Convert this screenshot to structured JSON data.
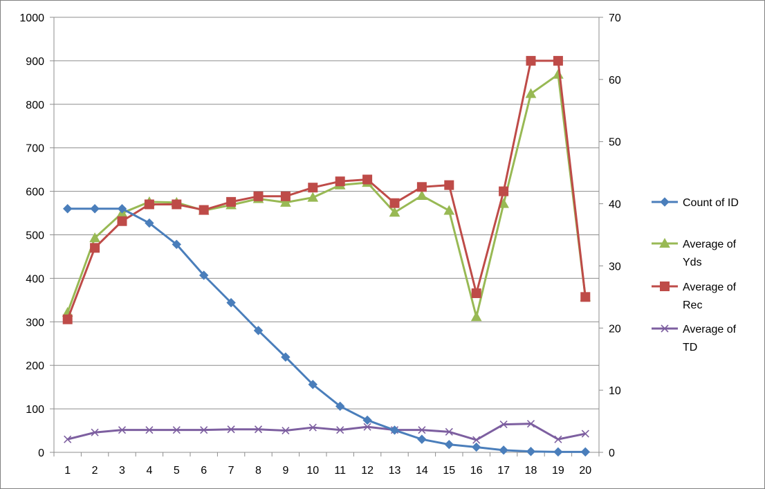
{
  "chart_data": {
    "type": "line",
    "title": "",
    "xlabel": "",
    "ylabel": "",
    "categories": [
      "1",
      "2",
      "3",
      "4",
      "5",
      "6",
      "7",
      "8",
      "9",
      "10",
      "11",
      "12",
      "13",
      "14",
      "15",
      "16",
      "17",
      "18",
      "19",
      "20"
    ],
    "y_left": {
      "min": 0,
      "max": 1000,
      "ticks": [
        "0",
        "100",
        "200",
        "300",
        "400",
        "500",
        "600",
        "700",
        "800",
        "900",
        "1000"
      ]
    },
    "y_right": {
      "min": 0,
      "max": 70,
      "ticks": [
        "0",
        "10",
        "20",
        "30",
        "40",
        "50",
        "60",
        "70"
      ]
    },
    "grid": true,
    "legend": "right",
    "series": [
      {
        "name": "Count of ID",
        "axis": "left",
        "color": "#4a7ebb",
        "marker": "diamond",
        "values": [
          560,
          560,
          560,
          527,
          478,
          407,
          344,
          280,
          219,
          156,
          106,
          74,
          51,
          30,
          18,
          12,
          5,
          2,
          1,
          1
        ]
      },
      {
        "name": "Average of Yds",
        "axis": "right",
        "color": "#98b954",
        "marker": "triangle",
        "values": [
          22.5,
          34.5,
          38.5,
          40.3,
          40.2,
          38.9,
          39.8,
          40.8,
          40.2,
          41.0,
          43.0,
          43.4,
          38.6,
          41.3,
          38.9,
          21.8,
          40.0,
          57.7,
          60.8,
          25.0
        ]
      },
      {
        "name": "Average of Rec",
        "axis": "right",
        "color": "#be4b48",
        "marker": "square",
        "values": [
          21.4,
          32.9,
          37.2,
          39.9,
          39.9,
          39.0,
          40.3,
          41.2,
          41.2,
          42.6,
          43.6,
          43.9,
          40.1,
          42.7,
          43.0,
          25.6,
          42.0,
          63.0,
          63.0,
          25.0
        ]
      },
      {
        "name": "Average of TD",
        "axis": "right",
        "color": "#7d5fa0",
        "marker": "x",
        "values": [
          2.1,
          3.2,
          3.6,
          3.6,
          3.6,
          3.6,
          3.7,
          3.7,
          3.5,
          4.0,
          3.6,
          4.1,
          3.6,
          3.6,
          3.3,
          2.0,
          4.5,
          4.6,
          2.1,
          3.0
        ]
      }
    ],
    "legend_lines": [
      [
        "Count of ID"
      ],
      [
        "Average of",
        "Yds"
      ],
      [
        "Average of",
        "Rec"
      ],
      [
        "Average of",
        "TD"
      ]
    ]
  }
}
